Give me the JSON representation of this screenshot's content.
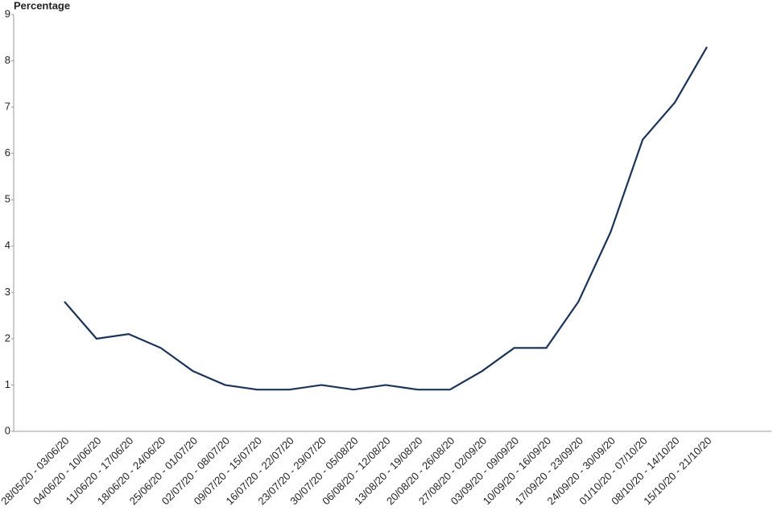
{
  "chart_data": {
    "type": "line",
    "y_label": "Percentage",
    "categories": [
      "28/05/20 - 03/06/20",
      "04/06/20 - 10/06/20",
      "11/06/20 - 17/06/20",
      "18/06/20 - 24/06/20",
      "25/06/20 - 01/07/20",
      "02/07/20 - 08/07/20",
      "09/07/20 - 15/07/20",
      "16/07/20 - 22/07/20",
      "23/07/20 - 29/07/20",
      "30/07/20 - 05/08/20",
      "06/08/20 - 12/08/20",
      "13/08/20 - 19/08/20",
      "20/08/20 - 26/08/20",
      "27/08/20 - 02/09/20",
      "03/09/20 - 09/09/20",
      "10/09/20 - 16/09/20",
      "17/09/20 - 23/09/20",
      "24/09/20 - 30/09/20",
      "01/10/20 - 07/10/20",
      "08/10/20 - 14/10/20",
      "15/10/20 - 21/10/20"
    ],
    "values": [
      2.8,
      2.0,
      2.1,
      1.8,
      1.3,
      1.0,
      0.9,
      0.9,
      1.0,
      0.9,
      1.0,
      0.9,
      0.9,
      1.3,
      1.8,
      1.8,
      2.8,
      4.3,
      6.3,
      7.1,
      8.3
    ],
    "color": "#1b3358",
    "ylim": [
      0,
      9
    ],
    "yticks": [
      0,
      1,
      2,
      3,
      4,
      5,
      6,
      7,
      8,
      9
    ],
    "grid": false
  }
}
